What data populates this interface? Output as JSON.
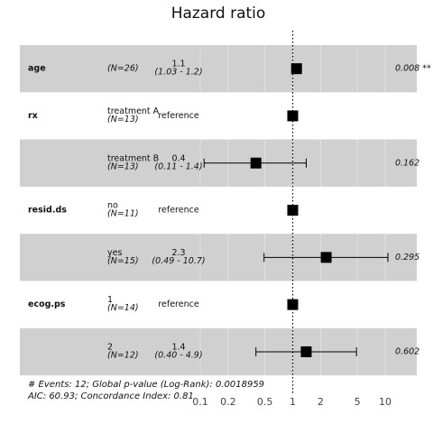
{
  "chart_data": {
    "type": "forest",
    "title": "Hazard ratio",
    "log_x": true,
    "grid": true,
    "band_color": "#d0d0d0",
    "mark_color": "#000000",
    "reference_line": 1,
    "xlim": [
      0.1,
      10.7
    ],
    "xticks": [
      0.1,
      0.2,
      0.5,
      1,
      2,
      5,
      10
    ],
    "rows": [
      {
        "variable": "age",
        "n": "(N=26)",
        "hr": 1.1,
        "ci": [
          1.03,
          1.2
        ],
        "ci_label": "(1.03 -  1.2)",
        "p_label": "0.008 **"
      },
      {
        "variable": "rx",
        "level": "treatment A",
        "n": "(N=13)",
        "hr": 1,
        "hr_label": "reference"
      },
      {
        "level": "treatment B",
        "n": "(N=13)",
        "hr": 0.4,
        "ci": [
          0.11,
          1.4
        ],
        "ci_label": "(0.11 -  1.4)",
        "p_label": "0.162"
      },
      {
        "variable": "resid.ds",
        "level": "no",
        "n": "(N=11)",
        "hr": 1,
        "hr_label": "reference"
      },
      {
        "level": "yes",
        "n": "(N=15)",
        "hr": 2.3,
        "ci": [
          0.49,
          10.7
        ],
        "ci_label": "(0.49 - 10.7)",
        "p_label": "0.295"
      },
      {
        "variable": "ecog.ps",
        "level": "1",
        "n": "(N=14)",
        "hr": 1,
        "hr_label": "reference"
      },
      {
        "level": "2",
        "n": "(N=12)",
        "hr": 1.4,
        "ci": [
          0.4,
          4.9
        ],
        "ci_label": "(0.40 -  4.9)",
        "p_label": "0.602"
      }
    ],
    "footnotes": [
      "# Events: 12; Global p-value (Log-Rank): 0.0018959",
      "AIC: 60.93; Concordance Index: 0.81"
    ]
  }
}
